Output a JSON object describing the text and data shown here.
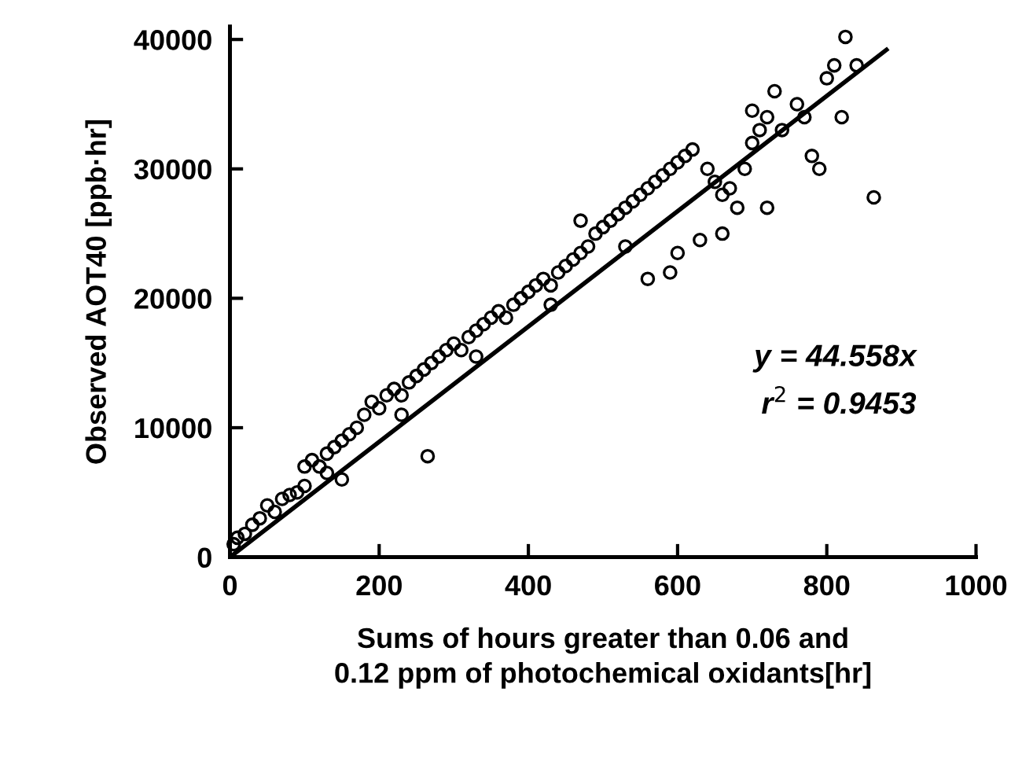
{
  "chart_data": {
    "type": "scatter",
    "xlabel": "Sums of hours greater than 0.06 and\n0.12 ppm of photochemical oxidants[hr]",
    "ylabel": "Observed AOT40 [ppb·hr]",
    "xlim": [
      0,
      1000
    ],
    "xticks": [
      0,
      200,
      400,
      600,
      800,
      1000
    ],
    "ylim": [
      0,
      41000
    ],
    "yticks": [
      0,
      10000,
      20000,
      30000,
      40000
    ],
    "grid": false,
    "legend": false,
    "annotations": [
      "y = 44.558x",
      "r$^{2}$ = 0.9453"
    ],
    "series": [
      {
        "color": "#000000",
        "marker": "circle",
        "x": [
          5,
          10,
          20,
          30,
          40,
          50,
          60,
          70,
          80,
          90,
          100,
          100,
          110,
          120,
          130,
          140,
          150,
          160,
          170,
          180,
          190,
          200,
          210,
          220,
          230,
          240,
          250,
          260,
          270,
          280,
          290,
          300,
          310,
          320,
          330,
          340,
          350,
          360,
          370,
          380,
          390,
          400,
          410,
          420,
          430,
          440,
          450,
          460,
          470,
          480,
          490,
          500,
          510,
          520,
          530,
          540,
          550,
          560,
          570,
          580,
          590,
          600,
          610,
          620,
          640,
          650,
          660,
          670,
          680,
          690,
          700,
          710,
          720,
          730,
          740,
          760,
          770,
          780,
          790,
          800,
          810,
          820,
          825,
          840,
          863,
          265,
          150,
          560,
          600,
          590,
          630,
          660,
          720,
          470,
          700,
          130,
          230,
          330,
          430,
          530
        ],
        "values": [
          1000,
          1500,
          1800,
          2500,
          3000,
          4000,
          3500,
          4500,
          4800,
          5000,
          7000,
          5500,
          7500,
          7000,
          8000,
          8500,
          9000,
          9500,
          10000,
          11000,
          12000,
          11500,
          12500,
          13000,
          12500,
          13500,
          14000,
          14500,
          15000,
          15500,
          16000,
          16500,
          16000,
          17000,
          17500,
          18000,
          18500,
          19000,
          18500,
          19500,
          20000,
          20500,
          21000,
          21500,
          21000,
          22000,
          22500,
          23000,
          23500,
          24000,
          25000,
          25500,
          26000,
          26500,
          27000,
          27500,
          28000,
          28500,
          29000,
          29500,
          30000,
          30500,
          31000,
          31500,
          30000,
          29000,
          28000,
          28500,
          27000,
          30000,
          32000,
          33000,
          34000,
          36000,
          33000,
          35000,
          34000,
          31000,
          30000,
          37000,
          38000,
          34000,
          40200,
          38000,
          27800,
          7800,
          6000,
          21500,
          23500,
          22000,
          24500,
          25000,
          27000,
          26000,
          34500,
          6500,
          11000,
          15500,
          19500,
          24000
        ]
      },
      {
        "type": "line",
        "color": "#000000",
        "marker": "none",
        "line_style": "solid",
        "x": [
          0,
          880
        ],
        "values": [
          0,
          39200
        ]
      }
    ]
  }
}
